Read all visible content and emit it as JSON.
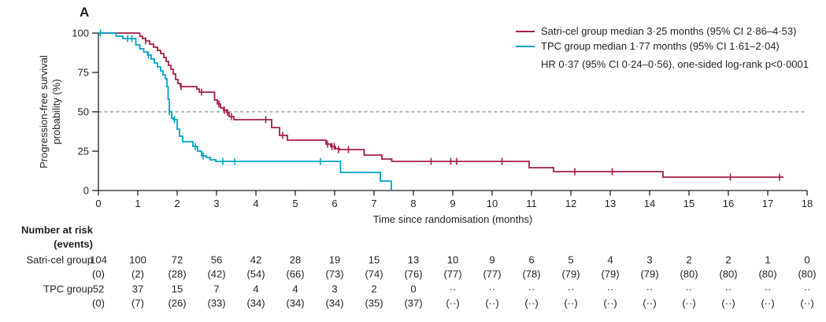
{
  "panel_label": "A",
  "colors": {
    "satri": "#a41e45",
    "tpc": "#00a2c6",
    "dashed": "#7d979e",
    "axis": "#231f20",
    "text": "#231f20"
  },
  "legend": {
    "items": [
      {
        "label": "Satri-cel group median 3·25 months (95% CI 2·86–4·53)",
        "color_key": "satri"
      },
      {
        "label": "TPC group median 1·77 months (95% CI 1·61–2·04)",
        "color_key": "tpc"
      }
    ],
    "note": "HR 0·37 (95% CI 0·24–0·56), one-sided log-rank p<0·0001"
  },
  "chart_data": {
    "type": "line",
    "subtype": "kaplan-meier-step",
    "xlabel": "Time since randomisation (months)",
    "ylabel_lines": [
      "Progression-free survival",
      "probability (%)"
    ],
    "xlim": [
      0,
      18
    ],
    "ylim": [
      0,
      100
    ],
    "x_ticks": [
      0,
      1,
      2,
      3,
      4,
      5,
      6,
      7,
      8,
      9,
      10,
      11,
      12,
      13,
      14,
      15,
      16,
      17,
      18
    ],
    "y_ticks": [
      0,
      25,
      50,
      75,
      100
    ],
    "reference_line_y": 50,
    "grid": false,
    "legend_position": "top-right",
    "series": [
      {
        "name": "Satri-cel group",
        "color_key": "satri",
        "median_months": 3.25,
        "end_x": 17.4,
        "steps": [
          [
            0,
            100
          ],
          [
            1.05,
            98
          ],
          [
            1.12,
            96.5
          ],
          [
            1.2,
            95
          ],
          [
            1.3,
            93
          ],
          [
            1.4,
            91
          ],
          [
            1.5,
            89
          ],
          [
            1.58,
            87
          ],
          [
            1.66,
            84.5
          ],
          [
            1.72,
            82
          ],
          [
            1.78,
            79.5
          ],
          [
            1.84,
            77
          ],
          [
            1.9,
            74
          ],
          [
            1.96,
            70.5
          ],
          [
            2.02,
            68
          ],
          [
            2.08,
            66
          ],
          [
            2.5,
            64.5
          ],
          [
            2.56,
            62.5
          ],
          [
            2.95,
            57.5
          ],
          [
            3.02,
            55
          ],
          [
            3.1,
            52.5
          ],
          [
            3.18,
            51
          ],
          [
            3.26,
            49.5
          ],
          [
            3.32,
            47
          ],
          [
            3.44,
            45
          ],
          [
            4.4,
            40
          ],
          [
            4.6,
            35
          ],
          [
            4.8,
            32
          ],
          [
            5.78,
            29.5
          ],
          [
            5.9,
            28
          ],
          [
            6.02,
            26.5
          ],
          [
            6.12,
            26
          ],
          [
            6.75,
            22.5
          ],
          [
            7.2,
            20
          ],
          [
            7.45,
            18.5
          ],
          [
            10.94,
            14.5
          ],
          [
            11.56,
            12
          ],
          [
            14.34,
            8.5
          ]
        ],
        "censors": [
          [
            1.2,
            95
          ],
          [
            2.1,
            66
          ],
          [
            2.62,
            62.5
          ],
          [
            3.06,
            55
          ],
          [
            3.2,
            51
          ],
          [
            3.28,
            49.5
          ],
          [
            3.38,
            47
          ],
          [
            4.25,
            45
          ],
          [
            4.68,
            35
          ],
          [
            5.82,
            29.5
          ],
          [
            5.93,
            28
          ],
          [
            5.99,
            28
          ],
          [
            6.1,
            26
          ],
          [
            6.35,
            26
          ],
          [
            8.45,
            18.5
          ],
          [
            8.95,
            18.5
          ],
          [
            9.1,
            18.5
          ],
          [
            10.25,
            18.5
          ],
          [
            12.1,
            12
          ],
          [
            13.05,
            12
          ],
          [
            16.05,
            8.5
          ],
          [
            17.3,
            8.5
          ]
        ]
      },
      {
        "name": "TPC group",
        "color_key": "tpc",
        "median_months": 1.77,
        "end_x": 7.44,
        "steps": [
          [
            0,
            100
          ],
          [
            0.45,
            98
          ],
          [
            0.62,
            96.5
          ],
          [
            0.95,
            92.5
          ],
          [
            1.05,
            90
          ],
          [
            1.15,
            88
          ],
          [
            1.25,
            86
          ],
          [
            1.34,
            83.5
          ],
          [
            1.42,
            81
          ],
          [
            1.5,
            78.5
          ],
          [
            1.58,
            76
          ],
          [
            1.64,
            73.5
          ],
          [
            1.7,
            71
          ],
          [
            1.74,
            66
          ],
          [
            1.77,
            58
          ],
          [
            1.8,
            50
          ],
          [
            1.86,
            46
          ],
          [
            1.9,
            45
          ],
          [
            2.0,
            39
          ],
          [
            2.06,
            34.5
          ],
          [
            2.14,
            31
          ],
          [
            2.4,
            28
          ],
          [
            2.52,
            25
          ],
          [
            2.62,
            22
          ],
          [
            2.74,
            21
          ],
          [
            2.84,
            19.5
          ],
          [
            2.98,
            18.5
          ],
          [
            6.15,
            11.5
          ],
          [
            7.16,
            6
          ],
          [
            7.44,
            0
          ]
        ],
        "censors": [
          [
            0.05,
            100
          ],
          [
            0.74,
            96.5
          ],
          [
            0.85,
            96.5
          ],
          [
            1.27,
            86
          ],
          [
            1.8,
            50
          ],
          [
            1.93,
            45
          ],
          [
            2.46,
            28
          ],
          [
            2.66,
            22
          ],
          [
            3.16,
            18.5
          ],
          [
            3.46,
            18.5
          ],
          [
            5.64,
            18.5
          ]
        ]
      }
    ]
  },
  "risk_table": {
    "header_line1": "Number at risk",
    "header_line2": "(events)",
    "rows": [
      {
        "label": "Satri-cel group",
        "counts": [
          "104",
          "100",
          "72",
          "56",
          "42",
          "28",
          "19",
          "15",
          "13",
          "10",
          "9",
          "6",
          "5",
          "4",
          "3",
          "2",
          "2",
          "1",
          "0"
        ],
        "events": [
          "(0)",
          "(2)",
          "(28)",
          "(42)",
          "(54)",
          "(66)",
          "(73)",
          "(74)",
          "(76)",
          "(77)",
          "(77)",
          "(78)",
          "(79)",
          "(79)",
          "(79)",
          "(80)",
          "(80)",
          "(80)",
          "(80)"
        ]
      },
      {
        "label": "TPC group",
        "counts": [
          "52",
          "37",
          "15",
          "7",
          "4",
          "4",
          "3",
          "2",
          "0",
          "··",
          "··",
          "··",
          "··",
          "··",
          "··",
          "··",
          "··",
          "··",
          "··"
        ],
        "events": [
          "(0)",
          "(7)",
          "(26)",
          "(33)",
          "(34)",
          "(34)",
          "(34)",
          "(35)",
          "(37)",
          "(··)",
          "(··)",
          "(··)",
          "(··)",
          "(··)",
          "(··)",
          "(··)",
          "(··)",
          "(··)",
          "(··)"
        ]
      }
    ]
  }
}
